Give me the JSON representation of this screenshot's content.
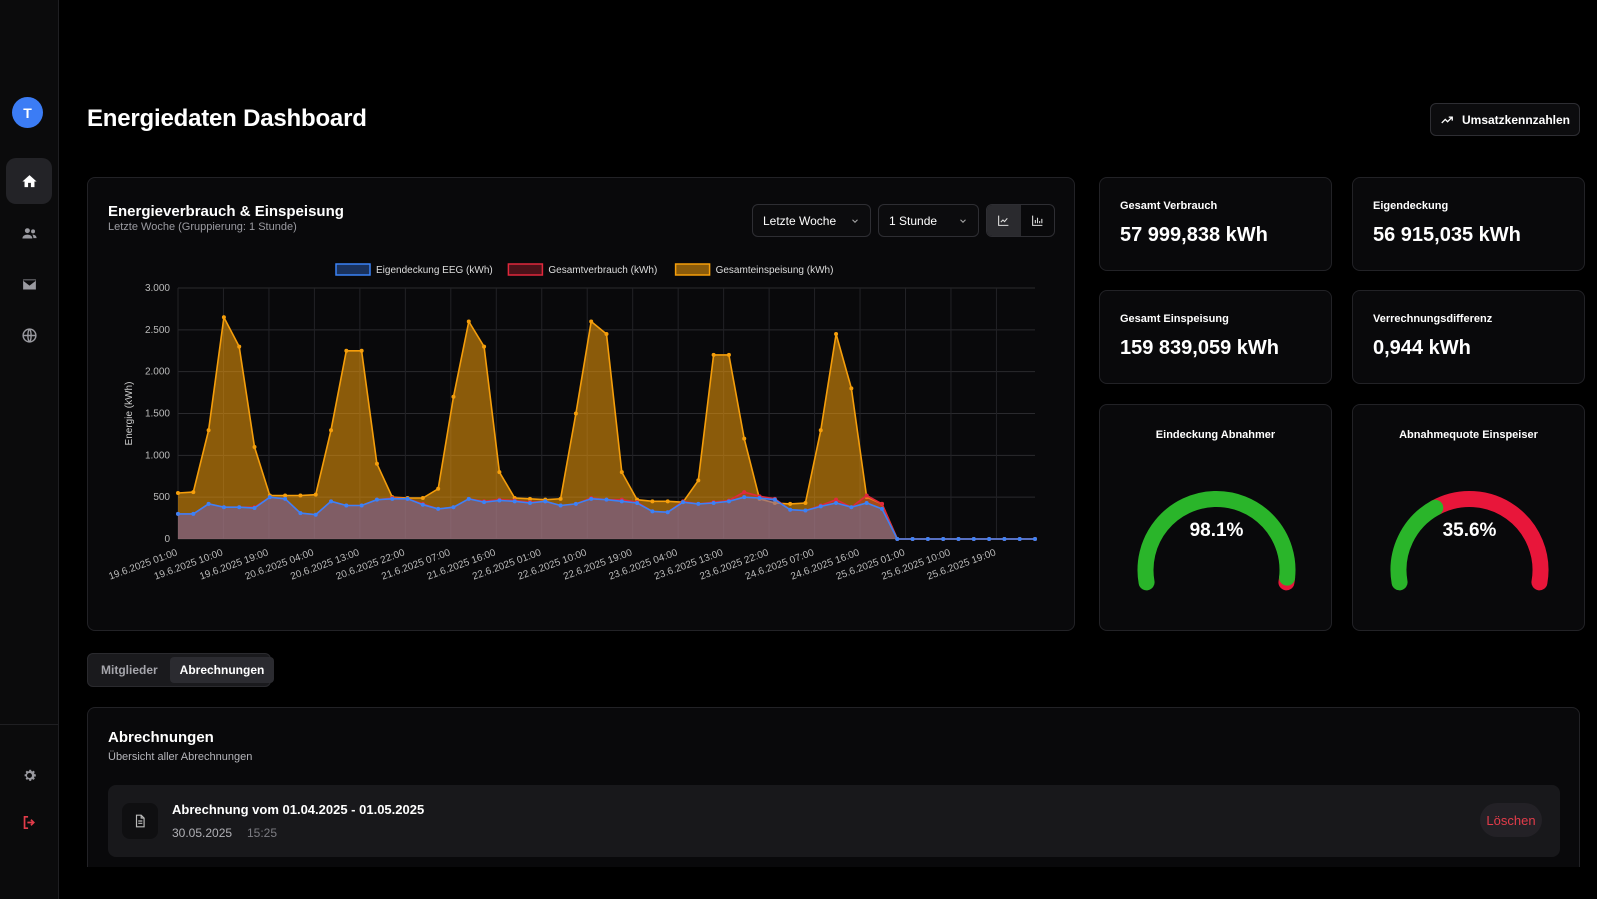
{
  "user": {
    "initial": "T"
  },
  "sidebar": {
    "items": [
      {
        "icon": "home-icon",
        "active": true
      },
      {
        "icon": "users-icon",
        "active": false
      },
      {
        "icon": "mail-icon",
        "active": false
      },
      {
        "icon": "globe-icon",
        "active": false
      }
    ],
    "bottom": [
      {
        "icon": "gear-icon"
      },
      {
        "icon": "logout-icon"
      }
    ]
  },
  "header": {
    "title": "Energiedaten Dashboard",
    "action_label": "Umsatzkennzahlen"
  },
  "chart_panel": {
    "title": "Energieverbrauch & Einspeisung",
    "subtitle": "Letzte Woche (Gruppierung: 1 Stunde)",
    "range_select": "Letzte Woche",
    "group_select": "1 Stunde"
  },
  "stats": {
    "gesamt_verbrauch": {
      "label": "Gesamt Verbrauch",
      "value": "57 999,838 kWh"
    },
    "eigendeckung": {
      "label": "Eigendeckung",
      "value": "56 915,035 kWh"
    },
    "gesamt_einspeisung": {
      "label": "Gesamt Einspeisung",
      "value": "159 839,059 kWh"
    },
    "verrechnungsdifferenz": {
      "label": "Verrechnungsdifferenz",
      "value": "0,944 kWh"
    }
  },
  "gauges": {
    "deckung": {
      "label": "Eindeckung Abnahmer",
      "value_text": "98.1%",
      "fraction": 0.981,
      "good_color": "#2ab52a",
      "bad_color": "#e8163a"
    },
    "quote": {
      "label": "Abnahmequote Einspeiser",
      "value_text": "35.6%",
      "fraction": 0.356,
      "good_color": "#2ab52a",
      "bad_color": "#e8163a"
    }
  },
  "tabs": {
    "members": "Mitglieder",
    "billing": "Abrechnungen"
  },
  "billing": {
    "title": "Abrechnungen",
    "subtitle": "Übersicht aller Abrechnungen",
    "items": [
      {
        "title": "Abrechnung vom 01.04.2025 - 01.05.2025",
        "date": "30.05.2025",
        "time": "15:25",
        "delete_label": "Löschen"
      }
    ]
  },
  "chart_data": {
    "type": "line",
    "title": "",
    "xlabel": "",
    "ylabel": "Energie (kWh)",
    "ylim": [
      0,
      3000
    ],
    "yticks": [
      0,
      500,
      1000,
      1500,
      2000,
      2500,
      3000
    ],
    "ytick_labels": [
      "0",
      "500",
      "1.000",
      "1.500",
      "2.000",
      "2.500",
      "3.000"
    ],
    "xtick_labels": [
      "19.6.2025 01:00",
      "19.6.2025 10:00",
      "19.6.2025 19:00",
      "20.6.2025 04:00",
      "20.6.2025 13:00",
      "20.6.2025 22:00",
      "21.6.2025 07:00",
      "21.6.2025 16:00",
      "22.6.2025 01:00",
      "22.6.2025 10:00",
      "22.6.2025 19:00",
      "23.6.2025 04:00",
      "23.6.2025 13:00",
      "23.6.2025 22:00",
      "24.6.2025 07:00",
      "24.6.2025 16:00",
      "25.6.2025 01:00",
      "25.6.2025 10:00",
      "25.6.2025 19:00"
    ],
    "legend": [
      "Eigendeckung EEG (kWh)",
      "Gesamtverbrauch (kWh)",
      "Gesamteinspeisung (kWh)"
    ],
    "legend_position": "top",
    "colors": {
      "eigendeckung": "#3b82f6",
      "verbrauch": "#e0283c",
      "einspeisung": "#f59e0b"
    },
    "x_hours": [
      0,
      3,
      6,
      9,
      12,
      15,
      18,
      21,
      24,
      27,
      30,
      33,
      36,
      39,
      42,
      45,
      48,
      51,
      54,
      57,
      60,
      63,
      66,
      69,
      72,
      75,
      78,
      81,
      84,
      87,
      90,
      93,
      96,
      99,
      102,
      105,
      108,
      111,
      114,
      117,
      120,
      123,
      126,
      129,
      132,
      135,
      138,
      141,
      144,
      147,
      150,
      153,
      156,
      159,
      162,
      165,
      168
    ],
    "series": [
      {
        "name": "Gesamteinspeisung (kWh)",
        "values": [
          550,
          560,
          1300,
          2650,
          2300,
          1100,
          520,
          520,
          520,
          530,
          1300,
          2250,
          2250,
          900,
          500,
          490,
          490,
          600,
          1700,
          2600,
          2300,
          800,
          490,
          480,
          470,
          480,
          1500,
          2600,
          2450,
          800,
          470,
          450,
          450,
          440,
          700,
          2200,
          2200,
          1200,
          480,
          430,
          420,
          430,
          1300,
          2450,
          1800,
          500,
          420,
          0,
          0,
          0,
          0,
          0,
          0,
          0,
          0,
          0,
          0
        ]
      },
      {
        "name": "Gesamtverbrauch (kWh)",
        "values": [
          300,
          300,
          420,
          380,
          380,
          380,
          500,
          480,
          310,
          290,
          450,
          400,
          400,
          470,
          490,
          480,
          420,
          360,
          380,
          480,
          450,
          470,
          460,
          440,
          450,
          400,
          420,
          490,
          470,
          470,
          440,
          330,
          320,
          450,
          420,
          440,
          460,
          560,
          510,
          480,
          350,
          340,
          400,
          470,
          380,
          520,
          420,
          0,
          0,
          0,
          0,
          0,
          0,
          0,
          0,
          0,
          0
        ]
      },
      {
        "name": "Eigendeckung EEG (kWh)",
        "values": [
          300,
          300,
          420,
          380,
          380,
          370,
          500,
          480,
          310,
          290,
          450,
          400,
          400,
          470,
          480,
          480,
          410,
          360,
          380,
          480,
          440,
          460,
          450,
          430,
          450,
          400,
          420,
          480,
          470,
          450,
          430,
          330,
          320,
          440,
          420,
          430,
          450,
          500,
          490,
          470,
          350,
          340,
          390,
          430,
          380,
          430,
          360,
          0,
          0,
          0,
          0,
          0,
          0,
          0,
          0,
          0,
          0
        ]
      }
    ]
  }
}
